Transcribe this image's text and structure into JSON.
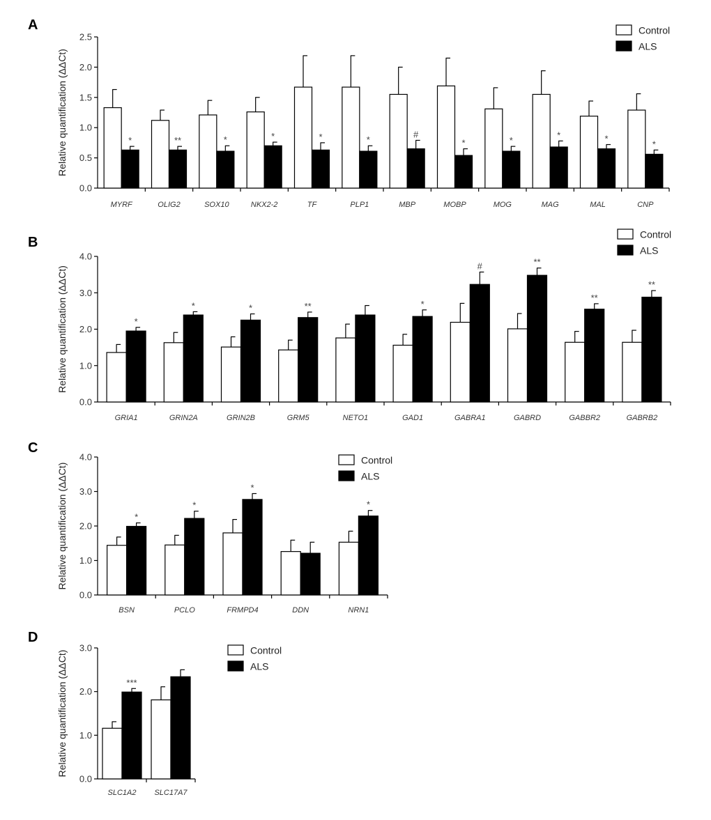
{
  "chart_data": [
    {
      "panel": "A",
      "type": "bar",
      "ylabel": "Relative quantification (ΔΔCt)",
      "ylim": [
        0,
        2.5
      ],
      "yticks": [
        "0.0",
        "0.5",
        "1.0",
        "1.5",
        "2.0",
        "2.5"
      ],
      "yticks_values": [
        0,
        0.5,
        1.0,
        1.5,
        2.0,
        2.5
      ],
      "legend_position": "top-right",
      "categories": [
        "MYRF",
        "OLIG2",
        "SOX10",
        "NKX2-2",
        "TF",
        "PLP1",
        "MBP",
        "MOBP",
        "MOG",
        "MAG",
        "MAL",
        "CNP"
      ],
      "series": [
        {
          "name": "Control",
          "color": "#ffffff",
          "values": [
            1.33,
            1.12,
            1.21,
            1.26,
            1.67,
            1.67,
            1.55,
            1.69,
            1.31,
            1.55,
            1.19,
            1.29
          ],
          "errors": [
            0.3,
            0.17,
            0.24,
            0.24,
            0.52,
            0.52,
            0.45,
            0.46,
            0.35,
            0.39,
            0.25,
            0.27
          ]
        },
        {
          "name": "ALS",
          "color": "#000000",
          "values": [
            0.63,
            0.63,
            0.61,
            0.7,
            0.63,
            0.61,
            0.65,
            0.54,
            0.61,
            0.68,
            0.65,
            0.56
          ],
          "errors": [
            0.06,
            0.06,
            0.09,
            0.06,
            0.12,
            0.09,
            0.14,
            0.11,
            0.08,
            0.1,
            0.07,
            0.07
          ]
        }
      ],
      "annotations": [
        "*",
        "**",
        "*",
        "*",
        "*",
        "*",
        "#",
        "*",
        "*",
        "*",
        "*",
        "*"
      ]
    },
    {
      "panel": "B",
      "type": "bar",
      "ylabel": "Relative quantification (ΔΔCt)",
      "ylim": [
        0,
        4.0
      ],
      "yticks": [
        "0.0",
        "1.0",
        "2.0",
        "3.0",
        "4.0"
      ],
      "yticks_values": [
        0,
        1,
        2,
        3,
        4
      ],
      "legend_position": "top-right",
      "categories": [
        "GRIA1",
        "GRIN2A",
        "GRIN2B",
        "GRM5",
        "NETO1",
        "GAD1",
        "GABRA1",
        "GABRD",
        "GABBR2",
        "GABRB2"
      ],
      "series": [
        {
          "name": "Control",
          "color": "#ffffff",
          "values": [
            1.36,
            1.63,
            1.51,
            1.43,
            1.76,
            1.56,
            2.19,
            2.01,
            1.64,
            1.64
          ],
          "errors": [
            0.22,
            0.28,
            0.28,
            0.27,
            0.38,
            0.3,
            0.52,
            0.42,
            0.3,
            0.33
          ]
        },
        {
          "name": "ALS",
          "color": "#000000",
          "values": [
            1.95,
            2.39,
            2.25,
            2.32,
            2.39,
            2.35,
            3.23,
            3.48,
            2.55,
            2.88
          ],
          "errors": [
            0.1,
            0.09,
            0.17,
            0.15,
            0.26,
            0.18,
            0.34,
            0.2,
            0.15,
            0.18
          ]
        }
      ],
      "annotations": [
        "*",
        "*",
        "*",
        "**",
        "",
        "*",
        "#",
        "**",
        "**",
        "**"
      ]
    },
    {
      "panel": "C",
      "type": "bar",
      "ylabel": "Relative quantification (ΔΔCt)",
      "ylim": [
        0,
        4.0
      ],
      "yticks": [
        "0.0",
        "1.0",
        "2.0",
        "3.0",
        "4.0"
      ],
      "yticks_values": [
        0,
        1,
        2,
        3,
        4
      ],
      "legend_position": "top-right",
      "categories": [
        "BSN",
        "PCLO",
        "FRMPD4",
        "DDN",
        "NRN1"
      ],
      "series": [
        {
          "name": "Control",
          "color": "#ffffff",
          "values": [
            1.44,
            1.45,
            1.8,
            1.26,
            1.53
          ],
          "errors": [
            0.24,
            0.28,
            0.39,
            0.33,
            0.32
          ]
        },
        {
          "name": "ALS",
          "color": "#000000",
          "values": [
            1.99,
            2.22,
            2.77,
            1.21,
            2.29
          ],
          "errors": [
            0.1,
            0.21,
            0.17,
            0.32,
            0.16
          ]
        }
      ],
      "annotations": [
        "*",
        "*",
        "*",
        "",
        "*"
      ]
    },
    {
      "panel": "D",
      "type": "bar",
      "ylabel": "Relative quantification (ΔΔCt)",
      "ylim": [
        0,
        3.0
      ],
      "yticks": [
        "0.0",
        "1.0",
        "2.0",
        "3.0"
      ],
      "yticks_values": [
        0,
        1,
        2,
        3
      ],
      "legend_position": "top-right",
      "categories": [
        "SLC1A2",
        "SLC17A7"
      ],
      "series": [
        {
          "name": "Control",
          "color": "#ffffff",
          "values": [
            1.16,
            1.81
          ],
          "errors": [
            0.15,
            0.3
          ]
        },
        {
          "name": "ALS",
          "color": "#000000",
          "values": [
            1.99,
            2.34
          ],
          "errors": [
            0.08,
            0.16
          ]
        }
      ],
      "annotations": [
        "***",
        ""
      ]
    }
  ]
}
